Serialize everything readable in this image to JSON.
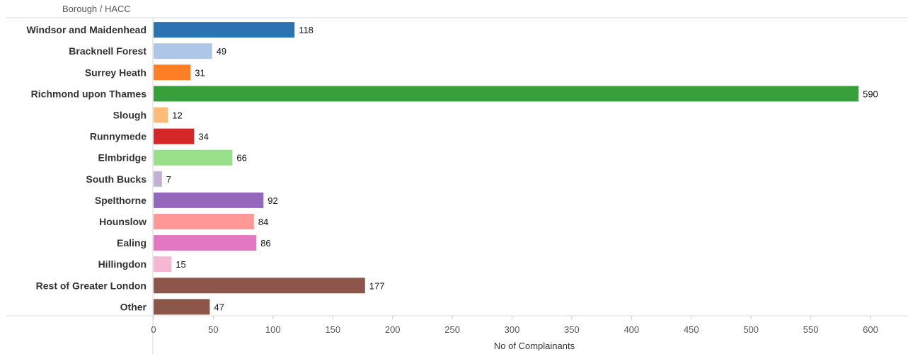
{
  "chart_data": {
    "type": "bar",
    "orientation": "horizontal",
    "category_header": "Borough / HACC",
    "xlabel": "No of Complainants",
    "xlim": [
      0,
      620
    ],
    "xticks": [
      0,
      50,
      100,
      150,
      200,
      250,
      300,
      350,
      400,
      450,
      500,
      550,
      600
    ],
    "grid": false,
    "categories": [
      "Windsor and Maidenhead",
      "Bracknell Forest",
      "Surrey Heath",
      "Richmond upon Thames",
      "Slough",
      "Runnymede",
      "Elmbridge",
      "South Bucks",
      "Spelthorne",
      "Hounslow",
      "Ealing",
      "Hillingdon",
      "Rest of Greater London",
      "Other"
    ],
    "values": [
      118,
      49,
      31,
      590,
      12,
      34,
      66,
      7,
      92,
      84,
      86,
      15,
      177,
      47
    ],
    "colors": [
      "#2b73b1",
      "#aec7e8",
      "#ff7f27",
      "#37a03a",
      "#ffbb78",
      "#d62728",
      "#98df8a",
      "#c5b0d5",
      "#9467bd",
      "#ff9896",
      "#e377c2",
      "#f7b6d2",
      "#8c564b",
      "#8c564b"
    ]
  }
}
